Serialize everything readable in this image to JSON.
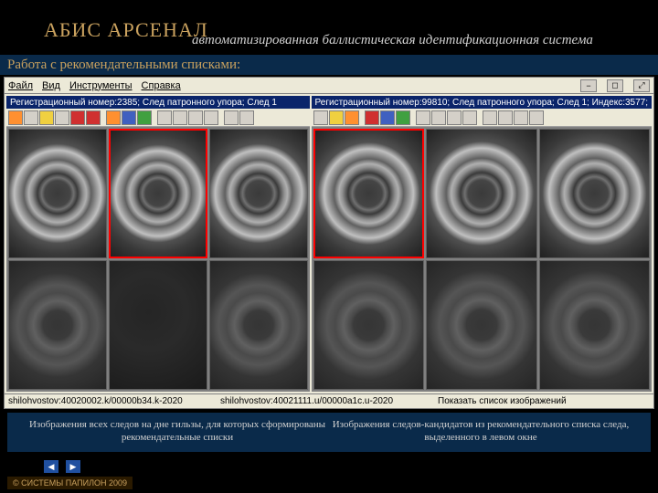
{
  "header": {
    "title_main": "АБИС АРСЕНАЛ",
    "title_sub": "автоматизированная баллистическая идентификационная система"
  },
  "section_title": "Работа с рекомендательными списками:",
  "menubar": {
    "items": [
      "Файл",
      "Вид",
      "Инструменты",
      "Справка"
    ],
    "winbtns": [
      "−",
      "◻",
      "⤢"
    ]
  },
  "left_pane": {
    "title": "Регистрационный номер:2385; След патронного упора; След 1",
    "toolbar_style": [
      "orange",
      "plain",
      "yellow",
      "plain",
      "red",
      "red",
      "sep",
      "orange",
      "blue",
      "green",
      "sep",
      "plain",
      "plain",
      "plain",
      "plain",
      "sep",
      "plain",
      "plain"
    ],
    "grid": [
      {
        "kind": "bright",
        "selected": false
      },
      {
        "kind": "bright",
        "selected": true
      },
      {
        "kind": "bright",
        "selected": false
      },
      {
        "kind": "muted",
        "selected": false
      },
      {
        "kind": "dark",
        "selected": false
      },
      {
        "kind": "muted",
        "selected": false
      }
    ],
    "status": "shilohvostov:40020002.k/00000b34.k-2020"
  },
  "right_pane": {
    "title": "Регистрационный номер:99810; След патронного упора; След 1; Индекс:3577;",
    "toolbar_style": [
      "plain",
      "yellow",
      "orange",
      "sep",
      "red",
      "blue",
      "green",
      "sep",
      "plain",
      "plain",
      "plain",
      "plain",
      "sep",
      "plain",
      "plain",
      "plain",
      "plain"
    ],
    "grid": [
      {
        "kind": "bright",
        "selected": true
      },
      {
        "kind": "bright",
        "selected": false
      },
      {
        "kind": "bright",
        "selected": false
      },
      {
        "kind": "muted",
        "selected": false
      },
      {
        "kind": "muted",
        "selected": false
      },
      {
        "kind": "muted",
        "selected": false
      }
    ],
    "status_left": "shilohvostov:40021111.u/00000a1c.u-2020",
    "status_right": "Показать список изображений"
  },
  "captions": {
    "left": "Изображения всех следов на дне гильзы, для которых сформированы рекомендательные списки",
    "right": "Изображения следов-кандидатов из рекомендательного списка следа, выделенного в левом окне"
  },
  "copyright": "© СИСТЕМЫ ПАПИЛОН 2009",
  "colors": {
    "bg": "#000000",
    "accent": "#c9a15e",
    "section_bg": "#0a2a4a",
    "window_chrome": "#ece9d8",
    "titlebar": "#0a246a",
    "selected_border": "#ff0000"
  }
}
